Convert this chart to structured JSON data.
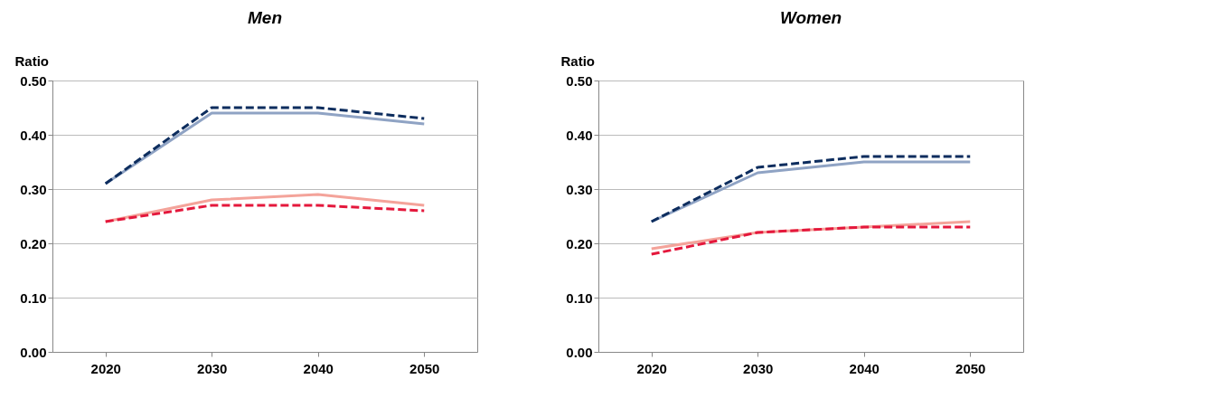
{
  "chart_data": [
    {
      "type": "line",
      "title": "Men",
      "ylabel": "Ratio",
      "categories": [
        "2020",
        "2030",
        "2040",
        "2050"
      ],
      "ylim": [
        0,
        0.5
      ],
      "yticks": [
        {
          "value": 0,
          "label": "0.00"
        },
        {
          "value": 0.1,
          "label": "0.10"
        },
        {
          "value": 0.2,
          "label": "0.20"
        },
        {
          "value": 0.3,
          "label": "0.30"
        },
        {
          "value": 0.4,
          "label": "0.40"
        },
        {
          "value": 0.5,
          "label": "0.50"
        }
      ],
      "grid": "y",
      "series": [
        {
          "color": "#8fa3c4",
          "line_style": "solid",
          "values": [
            0.31,
            0.44,
            0.44,
            0.42
          ]
        },
        {
          "color": "#0d2d5e",
          "line_style": "dashed",
          "values": [
            0.31,
            0.45,
            0.45,
            0.43
          ]
        },
        {
          "color": "#f4a39a",
          "line_style": "solid",
          "values": [
            0.24,
            0.28,
            0.29,
            0.27
          ]
        },
        {
          "color": "#e4183c",
          "line_style": "dashed",
          "values": [
            0.24,
            0.27,
            0.27,
            0.26
          ]
        }
      ]
    },
    {
      "type": "line",
      "title": "Women",
      "ylabel": "Ratio",
      "categories": [
        "2020",
        "2030",
        "2040",
        "2050"
      ],
      "ylim": [
        0,
        0.5
      ],
      "yticks": [
        {
          "value": 0,
          "label": "0.00"
        },
        {
          "value": 0.1,
          "label": "0.10"
        },
        {
          "value": 0.2,
          "label": "0.20"
        },
        {
          "value": 0.3,
          "label": "0.30"
        },
        {
          "value": 0.4,
          "label": "0.40"
        },
        {
          "value": 0.5,
          "label": "0.50"
        }
      ],
      "grid": "y",
      "series": [
        {
          "color": "#8fa3c4",
          "line_style": "solid",
          "values": [
            0.24,
            0.33,
            0.35,
            0.35
          ]
        },
        {
          "color": "#0d2d5e",
          "line_style": "dashed",
          "values": [
            0.24,
            0.34,
            0.36,
            0.36
          ]
        },
        {
          "color": "#f4a39a",
          "line_style": "solid",
          "values": [
            0.19,
            0.22,
            0.23,
            0.24
          ]
        },
        {
          "color": "#e4183c",
          "line_style": "dashed",
          "values": [
            0.18,
            0.22,
            0.23,
            0.23
          ]
        }
      ]
    }
  ]
}
